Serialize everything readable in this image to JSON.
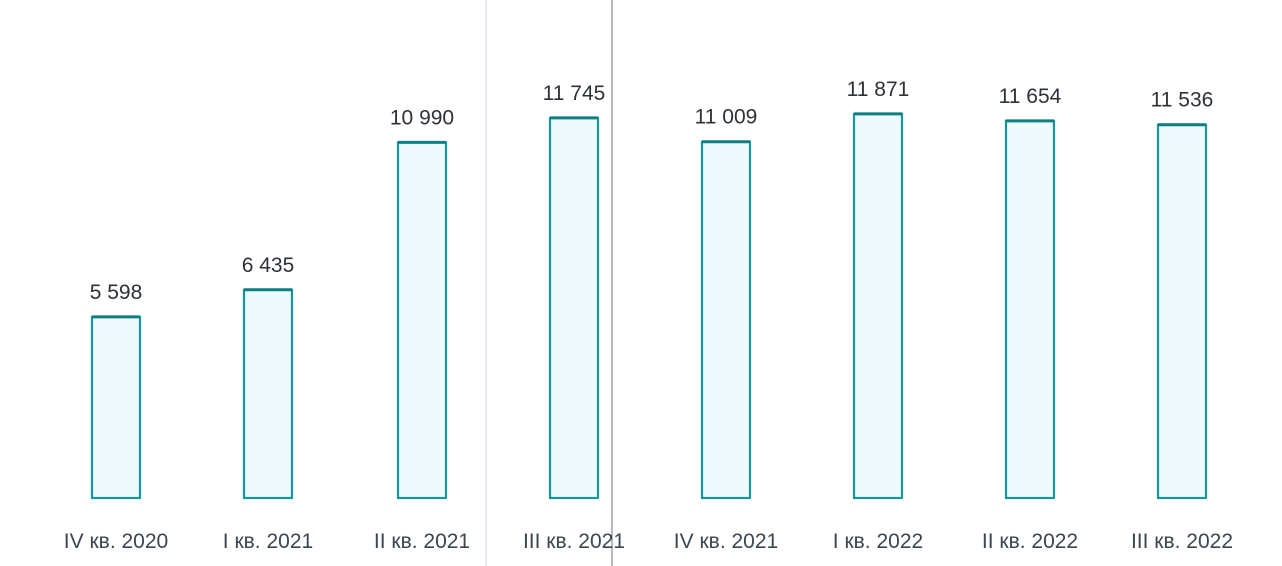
{
  "chart_data": {
    "type": "bar",
    "categories": [
      "IV кв. 2020",
      "I кв. 2021",
      "II кв. 2021",
      "III кв. 2021",
      "IV кв. 2021",
      "I кв. 2022",
      "II кв. 2022",
      "III кв. 2022"
    ],
    "values": [
      5598,
      6435,
      10990,
      11745,
      11009,
      11871,
      11654,
      11536
    ],
    "value_labels": [
      "5 598",
      "6 435",
      "10 990",
      "11 745",
      "11 009",
      "11 871",
      "11 654",
      "11 536"
    ],
    "title": "",
    "xlabel": "",
    "ylabel": "",
    "ylim": [
      0,
      12000
    ],
    "grid": false,
    "legend": "none",
    "colors": {
      "bar_fill": "#eefafb",
      "bar_stroke": "#16979b",
      "bar_top": "#0d7f83",
      "text": "#2d3238"
    }
  }
}
